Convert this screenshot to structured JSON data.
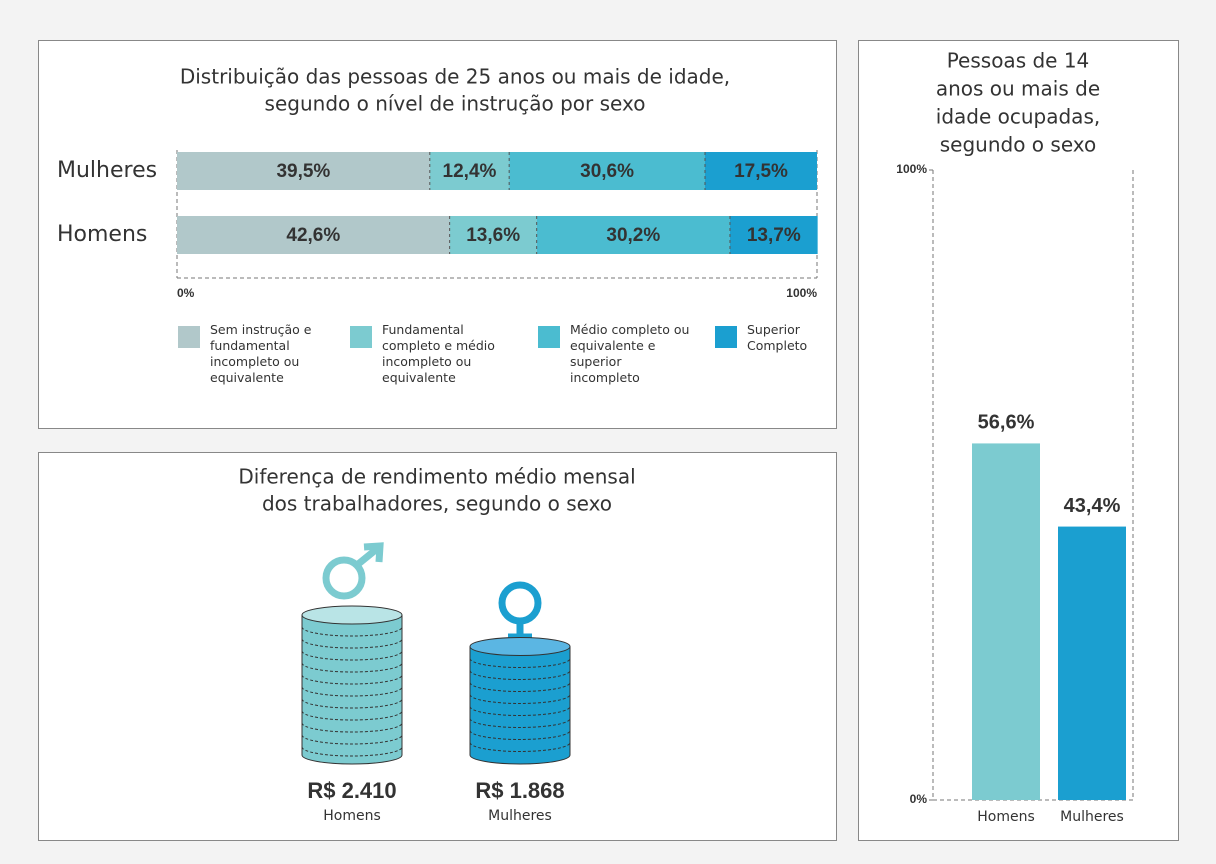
{
  "chart_data": [
    {
      "type": "stacked-barh",
      "title": [
        "Distribuição das pessoas de 25 anos ou mais de idade,",
        "segundo o nível de instrução por sexo"
      ],
      "categories": [
        "Mulheres",
        "Homens"
      ],
      "series": [
        {
          "name": "Sem instrução e fundamental incompleto ou equivalente",
          "color": "#b1c8ca",
          "values": [
            39.5,
            42.6
          ],
          "value_labels": [
            "39,5%",
            "42,6%"
          ]
        },
        {
          "name": "Fundamental completo e médio incompleto ou equivalente",
          "color": "#7ccbd0",
          "values": [
            12.4,
            13.6
          ],
          "value_labels": [
            "12,4%",
            "13,6%"
          ]
        },
        {
          "name": "Médio completo ou equivalente e superior incompleto",
          "color": "#4bbcd0",
          "values": [
            30.6,
            30.2
          ],
          "value_labels": [
            "30,6%",
            "30,2%"
          ]
        },
        {
          "name": "Superior Completo",
          "color": "#1b9fd0",
          "values": [
            17.5,
            13.7
          ],
          "value_labels": [
            "17,5%",
            "13,7%"
          ]
        }
      ],
      "xlim": [
        0,
        100
      ],
      "xticks": [
        {
          "value": 0,
          "label": "0%"
        },
        {
          "value": 100,
          "label": "100%"
        }
      ]
    },
    {
      "type": "pictograph",
      "title": [
        "Diferença de rendimento médio mensal",
        "dos trabalhadores, segundo o sexo"
      ],
      "categories": [
        "Homens",
        "Mulheres"
      ],
      "values": [
        2410,
        1868
      ],
      "value_labels": [
        "R$ 2.410",
        "R$ 1.868"
      ],
      "colors": [
        "#7ccbd0",
        "#1b9fd0"
      ]
    },
    {
      "type": "bar",
      "title": [
        "Pessoas de 14",
        "anos ou mais de",
        "idade ocupadas,",
        "segundo o sexo"
      ],
      "categories": [
        "Homens",
        "Mulheres"
      ],
      "values": [
        56.6,
        43.4
      ],
      "value_labels": [
        "56,6%",
        "43,4%"
      ],
      "colors": [
        "#7ccbd0",
        "#1b9fd0"
      ],
      "ylim": [
        0,
        100
      ],
      "yticks": [
        {
          "value": 0,
          "label": "0%"
        },
        {
          "value": 100,
          "label": "100%"
        }
      ]
    }
  ]
}
